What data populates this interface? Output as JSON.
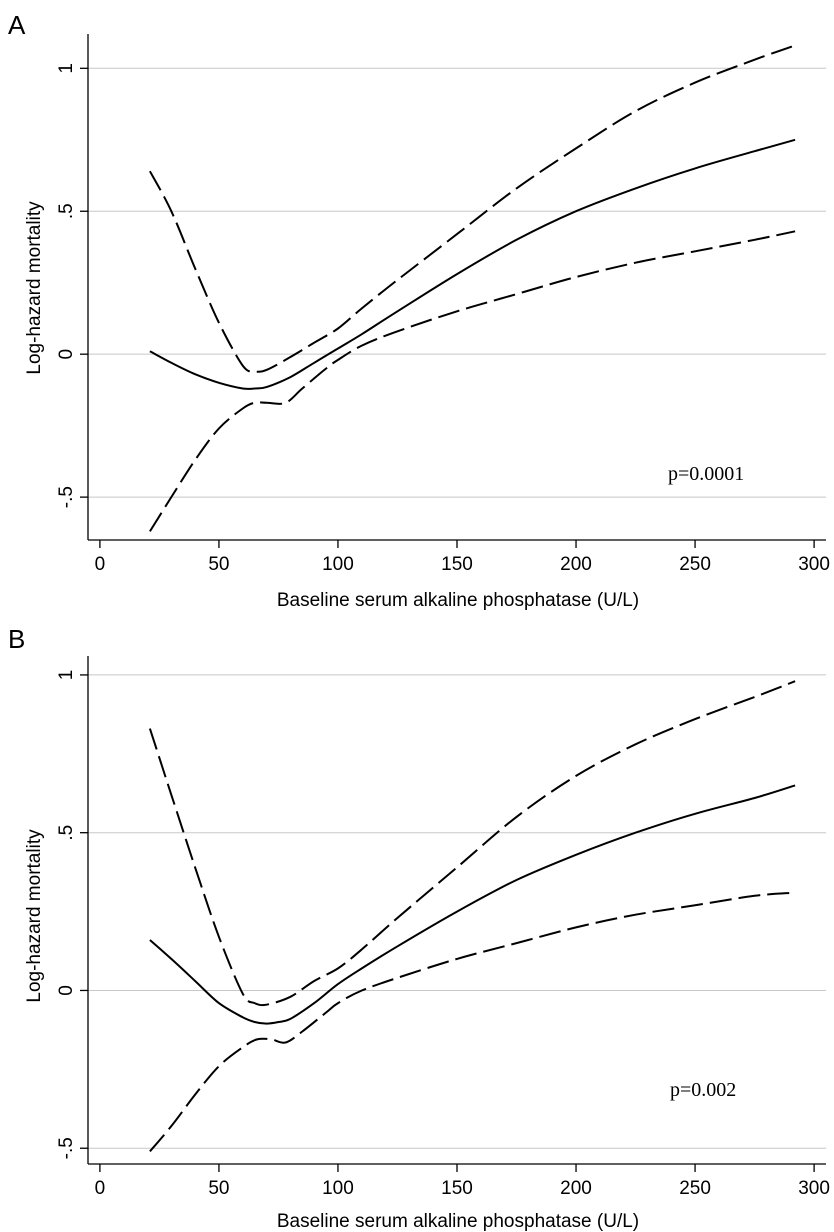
{
  "chart_data": [
    {
      "type": "line",
      "panel_label": "A",
      "xlabel": "Baseline serum alkaline phosphatase (U/L)",
      "ylabel": "Log-hazard mortality",
      "xlim": [
        -5,
        305
      ],
      "ylim": [
        -0.65,
        1.12
      ],
      "xticks": [
        0,
        50,
        100,
        150,
        200,
        250,
        300
      ],
      "xtick_labels": [
        "0",
        "50",
        "100",
        "150",
        "200",
        "250",
        "300"
      ],
      "yticks": [
        -0.5,
        0,
        0.5,
        1
      ],
      "ytick_labels": [
        "-.5",
        "0",
        ".5",
        "1"
      ],
      "grid": "horizontal",
      "annotation": "p=0.0001",
      "series": [
        {
          "style": "solid",
          "x": [
            21,
            30,
            40,
            50,
            60,
            65,
            70,
            80,
            90,
            100,
            110,
            125,
            150,
            175,
            200,
            225,
            250,
            275,
            292
          ],
          "y": [
            0.01,
            -0.03,
            -0.07,
            -0.1,
            -0.12,
            -0.12,
            -0.115,
            -0.08,
            -0.03,
            0.02,
            0.07,
            0.15,
            0.28,
            0.4,
            0.5,
            0.58,
            0.65,
            0.71,
            0.75
          ]
        },
        {
          "style": "dashed",
          "x": [
            21,
            30,
            40,
            50,
            60,
            65,
            70,
            80,
            90,
            100,
            110,
            125,
            150,
            175,
            200,
            225,
            250,
            275,
            292
          ],
          "y": [
            0.64,
            0.5,
            0.3,
            0.11,
            -0.04,
            -0.06,
            -0.055,
            -0.01,
            0.04,
            0.09,
            0.16,
            0.26,
            0.42,
            0.58,
            0.72,
            0.85,
            0.95,
            1.03,
            1.08
          ]
        },
        {
          "style": "dashed",
          "x": [
            21,
            30,
            40,
            50,
            60,
            65,
            70,
            78,
            85,
            95,
            100,
            110,
            125,
            150,
            175,
            200,
            225,
            250,
            275,
            292
          ],
          "y": [
            -0.62,
            -0.5,
            -0.37,
            -0.26,
            -0.19,
            -0.17,
            -0.17,
            -0.17,
            -0.12,
            -0.05,
            -0.02,
            0.03,
            0.08,
            0.15,
            0.21,
            0.27,
            0.32,
            0.36,
            0.4,
            0.43
          ]
        }
      ]
    },
    {
      "type": "line",
      "panel_label": "B",
      "xlabel": "Baseline serum alkaline phosphatase (U/L)",
      "ylabel": "Log-hazard mortality",
      "xlim": [
        -5,
        305
      ],
      "ylim": [
        -0.55,
        1.06
      ],
      "xticks": [
        0,
        50,
        100,
        150,
        200,
        250,
        300
      ],
      "xtick_labels": [
        "0",
        "50",
        "100",
        "150",
        "200",
        "250",
        "300"
      ],
      "yticks": [
        -0.5,
        0,
        0.5,
        1
      ],
      "ytick_labels": [
        "-.5",
        "0",
        ".5",
        "1"
      ],
      "grid": "horizontal",
      "annotation": "p=0.002",
      "series": [
        {
          "style": "solid",
          "x": [
            21,
            30,
            40,
            50,
            60,
            65,
            70,
            75,
            80,
            90,
            100,
            110,
            125,
            150,
            175,
            200,
            225,
            250,
            275,
            292
          ],
          "y": [
            0.16,
            0.1,
            0.03,
            -0.04,
            -0.085,
            -0.1,
            -0.105,
            -0.1,
            -0.09,
            -0.04,
            0.02,
            0.07,
            0.14,
            0.25,
            0.35,
            0.43,
            0.5,
            0.56,
            0.61,
            0.65
          ]
        },
        {
          "style": "dashed",
          "x": [
            21,
            30,
            40,
            50,
            60,
            65,
            70,
            80,
            90,
            100,
            110,
            125,
            150,
            175,
            200,
            225,
            250,
            275,
            292
          ],
          "y": [
            0.83,
            0.62,
            0.39,
            0.17,
            -0.01,
            -0.04,
            -0.045,
            -0.02,
            0.03,
            0.07,
            0.13,
            0.23,
            0.39,
            0.55,
            0.68,
            0.78,
            0.86,
            0.93,
            0.98
          ]
        },
        {
          "style": "dashed",
          "x": [
            21,
            30,
            40,
            50,
            60,
            66,
            72,
            78,
            85,
            95,
            100,
            110,
            125,
            150,
            175,
            200,
            225,
            250,
            275,
            292
          ],
          "y": [
            -0.51,
            -0.43,
            -0.33,
            -0.24,
            -0.18,
            -0.155,
            -0.155,
            -0.165,
            -0.13,
            -0.07,
            -0.04,
            0.0,
            0.04,
            0.1,
            0.15,
            0.2,
            0.24,
            0.27,
            0.3,
            0.31
          ]
        }
      ]
    }
  ]
}
